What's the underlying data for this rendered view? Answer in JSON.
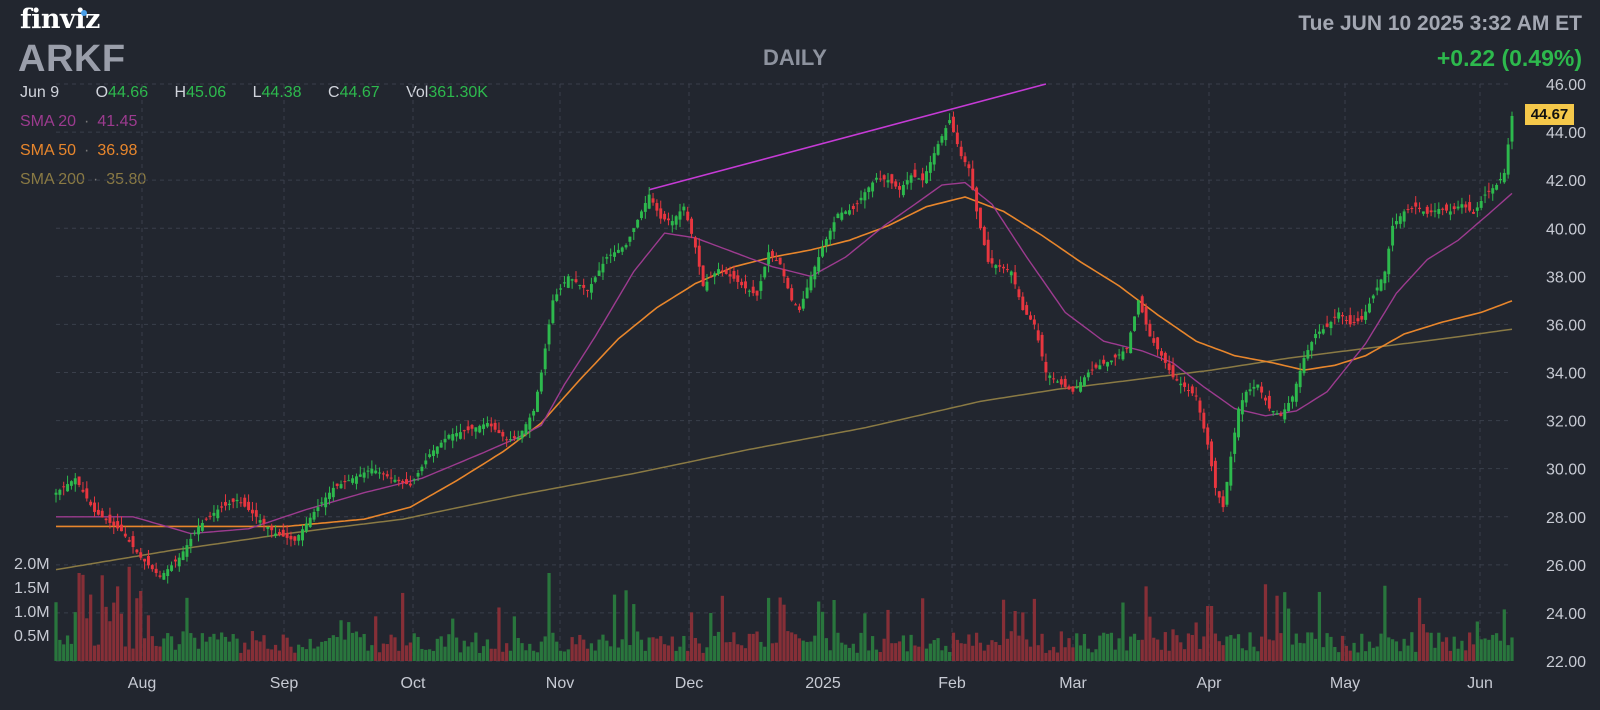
{
  "header": {
    "logo": "finviz",
    "ticker": "ARKF",
    "period": "DAILY",
    "datetime": "Tue JUN 10 2025 3:32 AM ET",
    "change": "+0.22 (0.49%)"
  },
  "ohlc": {
    "date": "Jun 9",
    "open_label": "O",
    "open": "44.66",
    "high_label": "H",
    "high": "45.06",
    "low_label": "L",
    "low": "44.38",
    "close_label": "C",
    "close": "44.67",
    "vol_label": "Vol",
    "vol": "361.30K"
  },
  "legend": [
    {
      "label": "SMA 20",
      "value": "41.45",
      "color": "#9c3b8f"
    },
    {
      "label": "SMA 50",
      "value": "36.98",
      "color": "#e8862c"
    },
    {
      "label": "SMA 200",
      "value": "35.80",
      "color": "#8a7a44"
    }
  ],
  "last_price": "44.67",
  "colors": {
    "up": "#2db94d",
    "down": "#e8363f",
    "background": "#22262f",
    "trendline": "#c63bd6",
    "sma20": "#9c3b8f",
    "sma50": "#e8862c",
    "sma200": "#8a7a44"
  },
  "chart_data": {
    "type": "candlestick",
    "y_axis": {
      "min": 22,
      "max": 46,
      "step": 2,
      "ticks": [
        "22.00",
        "24.00",
        "26.00",
        "28.00",
        "30.00",
        "32.00",
        "34.00",
        "36.00",
        "38.00",
        "40.00",
        "42.00",
        "44.00",
        "46.00"
      ]
    },
    "volume_axis": {
      "ticks": [
        "0.5M",
        "1.0M",
        "1.5M",
        "2.0M"
      ]
    },
    "x_axis": {
      "months": [
        "Aug",
        "Sep",
        "Oct",
        "Nov",
        "Dec",
        "2025",
        "Feb",
        "Mar",
        "Apr",
        "May",
        "Jun"
      ]
    },
    "price_path": [
      [
        0,
        29.0
      ],
      [
        5,
        29.6
      ],
      [
        10,
        28.2
      ],
      [
        17,
        27.4
      ],
      [
        22,
        26.3
      ],
      [
        27,
        25.5
      ],
      [
        32,
        26.3
      ],
      [
        37,
        27.6
      ],
      [
        42,
        28.3
      ],
      [
        47,
        28.7
      ],
      [
        52,
        28.0
      ],
      [
        57,
        27.3
      ],
      [
        62,
        27.0
      ],
      [
        67,
        28.2
      ],
      [
        72,
        29.2
      ],
      [
        77,
        29.6
      ],
      [
        82,
        30.0
      ],
      [
        87,
        29.6
      ],
      [
        92,
        29.3
      ],
      [
        97,
        30.6
      ],
      [
        102,
        31.4
      ],
      [
        107,
        31.6
      ],
      [
        112,
        31.9
      ],
      [
        117,
        31.2
      ],
      [
        120,
        31.3
      ],
      [
        124,
        32.4
      ],
      [
        126,
        34.0
      ],
      [
        129,
        37.0
      ],
      [
        133,
        38.0
      ],
      [
        138,
        37.4
      ],
      [
        143,
        38.8
      ],
      [
        148,
        39.3
      ],
      [
        152,
        40.7
      ],
      [
        154,
        41.4
      ],
      [
        157,
        40.4
      ],
      [
        160,
        40.3
      ],
      [
        163,
        40.9
      ],
      [
        166,
        39.2
      ],
      [
        168,
        37.6
      ],
      [
        172,
        38.3
      ],
      [
        176,
        37.9
      ],
      [
        179,
        37.5
      ],
      [
        182,
        37.2
      ],
      [
        185,
        39.0
      ],
      [
        188,
        38.5
      ],
      [
        191,
        37.0
      ],
      [
        193,
        36.6
      ],
      [
        196,
        38.0
      ],
      [
        199,
        39.2
      ],
      [
        203,
        40.6
      ],
      [
        207,
        40.8
      ],
      [
        210,
        41.5
      ],
      [
        213,
        42.1
      ],
      [
        216,
        42.0
      ],
      [
        219,
        41.6
      ],
      [
        222,
        42.2
      ],
      [
        225,
        42.0
      ],
      [
        229,
        43.5
      ],
      [
        232,
        44.5
      ],
      [
        235,
        43.0
      ],
      [
        237,
        42.5
      ],
      [
        239,
        40.7
      ],
      [
        242,
        38.6
      ],
      [
        245,
        38.4
      ],
      [
        248,
        38.2
      ],
      [
        251,
        36.6
      ],
      [
        254,
        36.0
      ],
      [
        257,
        34.0
      ],
      [
        261,
        33.5
      ],
      [
        264,
        33.2
      ],
      [
        268,
        34.0
      ],
      [
        271,
        34.3
      ],
      [
        274,
        34.5
      ],
      [
        278,
        35.0
      ],
      [
        281,
        37.0
      ],
      [
        284,
        35.5
      ],
      [
        287,
        34.7
      ],
      [
        290,
        33.8
      ],
      [
        293,
        33.4
      ],
      [
        296,
        33.0
      ],
      [
        299,
        31.0
      ],
      [
        301,
        29.2
      ],
      [
        303,
        28.4
      ],
      [
        305,
        30.5
      ],
      [
        307,
        32.5
      ],
      [
        309,
        33.2
      ],
      [
        312,
        33.5
      ],
      [
        315,
        32.5
      ],
      [
        318,
        32.2
      ],
      [
        321,
        33.0
      ],
      [
        324,
        34.6
      ],
      [
        327,
        35.6
      ],
      [
        330,
        35.9
      ],
      [
        333,
        36.5
      ],
      [
        336,
        36.0
      ],
      [
        339,
        36.2
      ],
      [
        342,
        37.2
      ],
      [
        345,
        38.2
      ],
      [
        347,
        40.1
      ],
      [
        350,
        40.7
      ],
      [
        353,
        40.9
      ],
      [
        356,
        40.6
      ],
      [
        359,
        40.8
      ],
      [
        362,
        40.7
      ],
      [
        365,
        41.0
      ],
      [
        368,
        40.6
      ],
      [
        371,
        41.4
      ],
      [
        374,
        41.8
      ],
      [
        376,
        42.3
      ],
      [
        378,
        44.67
      ]
    ],
    "sma20_path": [
      [
        0,
        28.0
      ],
      [
        20,
        28.0
      ],
      [
        35,
        27.3
      ],
      [
        50,
        27.5
      ],
      [
        65,
        28.3
      ],
      [
        80,
        29.0
      ],
      [
        95,
        29.6
      ],
      [
        110,
        30.6
      ],
      [
        120,
        31.3
      ],
      [
        126,
        31.8
      ],
      [
        132,
        33.5
      ],
      [
        140,
        35.5
      ],
      [
        150,
        38.2
      ],
      [
        158,
        39.8
      ],
      [
        166,
        39.6
      ],
      [
        176,
        39.0
      ],
      [
        186,
        38.4
      ],
      [
        196,
        38.0
      ],
      [
        205,
        38.8
      ],
      [
        215,
        40.1
      ],
      [
        223,
        41.0
      ],
      [
        230,
        41.8
      ],
      [
        236,
        41.9
      ],
      [
        243,
        41.0
      ],
      [
        252,
        38.8
      ],
      [
        262,
        36.5
      ],
      [
        272,
        35.3
      ],
      [
        282,
        34.9
      ],
      [
        290,
        34.4
      ],
      [
        298,
        33.4
      ],
      [
        306,
        32.5
      ],
      [
        314,
        32.2
      ],
      [
        322,
        32.4
      ],
      [
        330,
        33.2
      ],
      [
        340,
        35.2
      ],
      [
        348,
        37.3
      ],
      [
        356,
        38.7
      ],
      [
        364,
        39.5
      ],
      [
        372,
        40.6
      ],
      [
        378,
        41.45
      ]
    ],
    "sma50_path": [
      [
        0,
        27.6
      ],
      [
        20,
        27.6
      ],
      [
        40,
        27.6
      ],
      [
        60,
        27.6
      ],
      [
        80,
        27.9
      ],
      [
        92,
        28.4
      ],
      [
        104,
        29.5
      ],
      [
        116,
        30.7
      ],
      [
        126,
        31.9
      ],
      [
        136,
        33.7
      ],
      [
        146,
        35.4
      ],
      [
        156,
        36.7
      ],
      [
        166,
        37.7
      ],
      [
        176,
        38.4
      ],
      [
        186,
        38.8
      ],
      [
        196,
        39.1
      ],
      [
        206,
        39.5
      ],
      [
        216,
        40.1
      ],
      [
        226,
        40.9
      ],
      [
        236,
        41.3
      ],
      [
        246,
        40.7
      ],
      [
        256,
        39.7
      ],
      [
        266,
        38.6
      ],
      [
        276,
        37.6
      ],
      [
        286,
        36.4
      ],
      [
        296,
        35.3
      ],
      [
        306,
        34.7
      ],
      [
        316,
        34.4
      ],
      [
        324,
        34.1
      ],
      [
        332,
        34.3
      ],
      [
        340,
        34.7
      ],
      [
        350,
        35.6
      ],
      [
        360,
        36.1
      ],
      [
        370,
        36.5
      ],
      [
        378,
        36.98
      ]
    ],
    "sma200_path": [
      [
        0,
        25.8
      ],
      [
        30,
        26.6
      ],
      [
        60,
        27.3
      ],
      [
        90,
        27.9
      ],
      [
        120,
        28.9
      ],
      [
        150,
        29.8
      ],
      [
        180,
        30.8
      ],
      [
        210,
        31.7
      ],
      [
        240,
        32.8
      ],
      [
        260,
        33.3
      ],
      [
        280,
        33.7
      ],
      [
        300,
        34.1
      ],
      [
        320,
        34.6
      ],
      [
        340,
        35.0
      ],
      [
        360,
        35.4
      ],
      [
        378,
        35.8
      ]
    ],
    "trendline": {
      "x0": 154,
      "y0": 41.6,
      "x1": 257,
      "y1": 46.0
    }
  }
}
